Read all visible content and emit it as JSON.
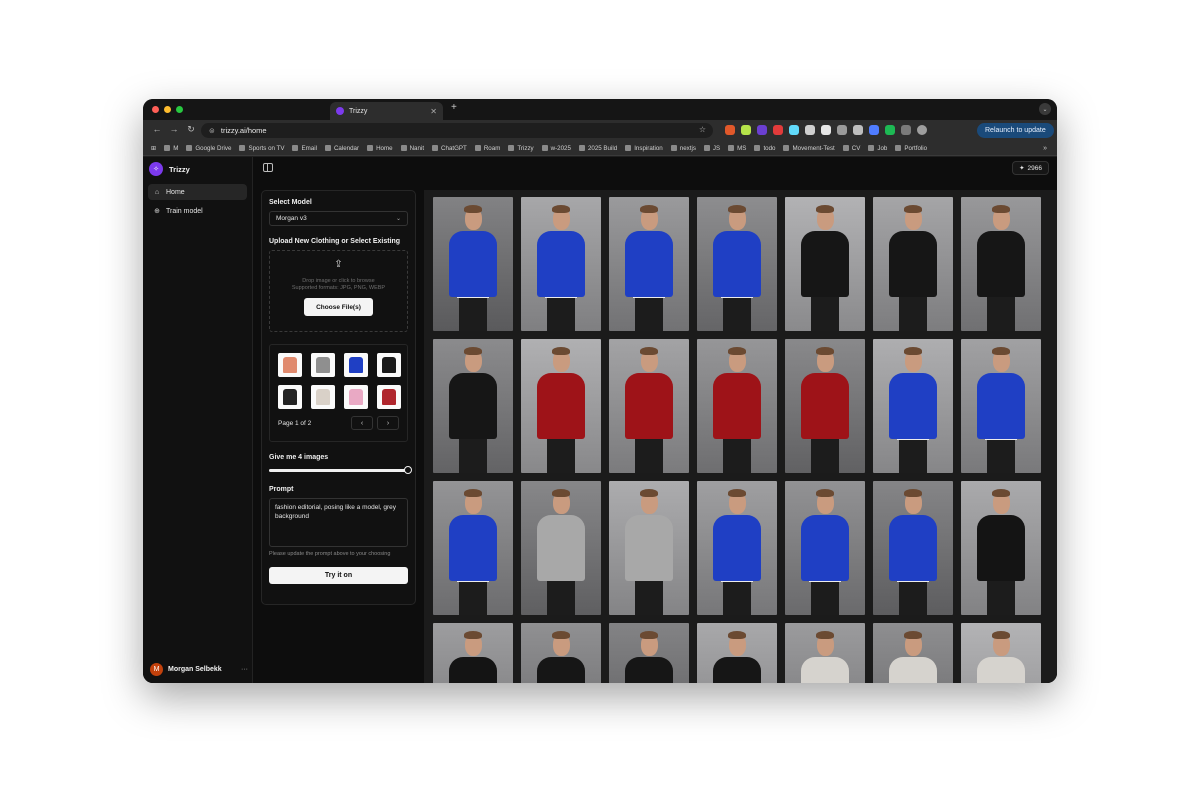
{
  "browser": {
    "tab_title": "Trizzy",
    "url": "trizzy.ai/home",
    "relaunch_label": "Relaunch to update",
    "bookmarks": [
      "M",
      "Google Drive",
      "Sports on TV",
      "Email",
      "Calendar",
      "Home",
      "Nanit",
      "ChatGPT",
      "Roam",
      "Trizzy",
      "w-2025",
      "2025 Build",
      "Inspiration",
      "nextjs",
      "JS",
      "MS",
      "todo",
      "Movement-Test",
      "CV",
      "Job",
      "Portfolio"
    ],
    "bookmark_more": "»"
  },
  "sidebar": {
    "brand": "Trizzy",
    "items": [
      {
        "label": "Home",
        "icon": "home-icon"
      },
      {
        "label": "Train model",
        "icon": "train-model-icon"
      }
    ],
    "user_initial": "M",
    "user_name": "Morgan Selbekk",
    "more": "···"
  },
  "topbar": {
    "credits": "2966"
  },
  "form": {
    "select_model_label": "Select Model",
    "selected_model": "Morgan v3",
    "upload_label": "Upload New Clothing or Select Existing",
    "dropzone_line1": "Drop image or click to browse",
    "dropzone_line2": "Supported formats: JPG, PNG, WEBP",
    "choose_button": "Choose File(s)",
    "page_text": "Page 1 of 2",
    "images_label": "Give me 4 images",
    "image_count_fraction": 1.0,
    "prompt_label": "Prompt",
    "prompt_value": "fashion editorial, posing like a model, grey background",
    "prompt_hint": "Please update the prompt above to your choosing",
    "try_button": "Try it on"
  },
  "colors": {
    "accent": "#7c3aed",
    "hoodie_blue": "#1f3fc4",
    "shirt_red": "#9e1318",
    "blazer_black": "#161616",
    "tee_grey": "#a8a8a8",
    "knit_black": "#141414",
    "suit_light": "#d6d3ce"
  },
  "thumbnails": [
    {
      "name": "swimsuit-thumb",
      "color": "#e08a6e"
    },
    {
      "name": "grey-tee-thumb",
      "color": "#8f8f8f"
    },
    {
      "name": "blue-hoodie-thumb",
      "color": "#1f3fc4"
    },
    {
      "name": "black-top-thumb",
      "color": "#1a1a1a"
    },
    {
      "name": "black-blazer-thumb",
      "color": "#222222"
    },
    {
      "name": "light-shirt-thumb",
      "color": "#d9d1c8"
    },
    {
      "name": "pink-graphic-thumb",
      "color": "#e9a9c4"
    },
    {
      "name": "red-shirt-thumb",
      "color": "#b0262d"
    }
  ],
  "results": [
    "hoodie_blue",
    "hoodie_blue",
    "hoodie_blue",
    "hoodie_blue",
    "blazer_black",
    "blazer_black",
    "blazer_black",
    "blazer_black",
    "shirt_red",
    "shirt_red",
    "shirt_red",
    "shirt_red",
    "hoodie_blue",
    "hoodie_blue",
    "hoodie_blue",
    "tee_grey",
    "tee_grey",
    "hoodie_blue",
    "hoodie_blue",
    "hoodie_blue",
    "knit_black",
    "knit_black",
    "blazer_black",
    "blazer_black",
    "blazer_black",
    "suit_light",
    "suit_light",
    "suit_light"
  ]
}
